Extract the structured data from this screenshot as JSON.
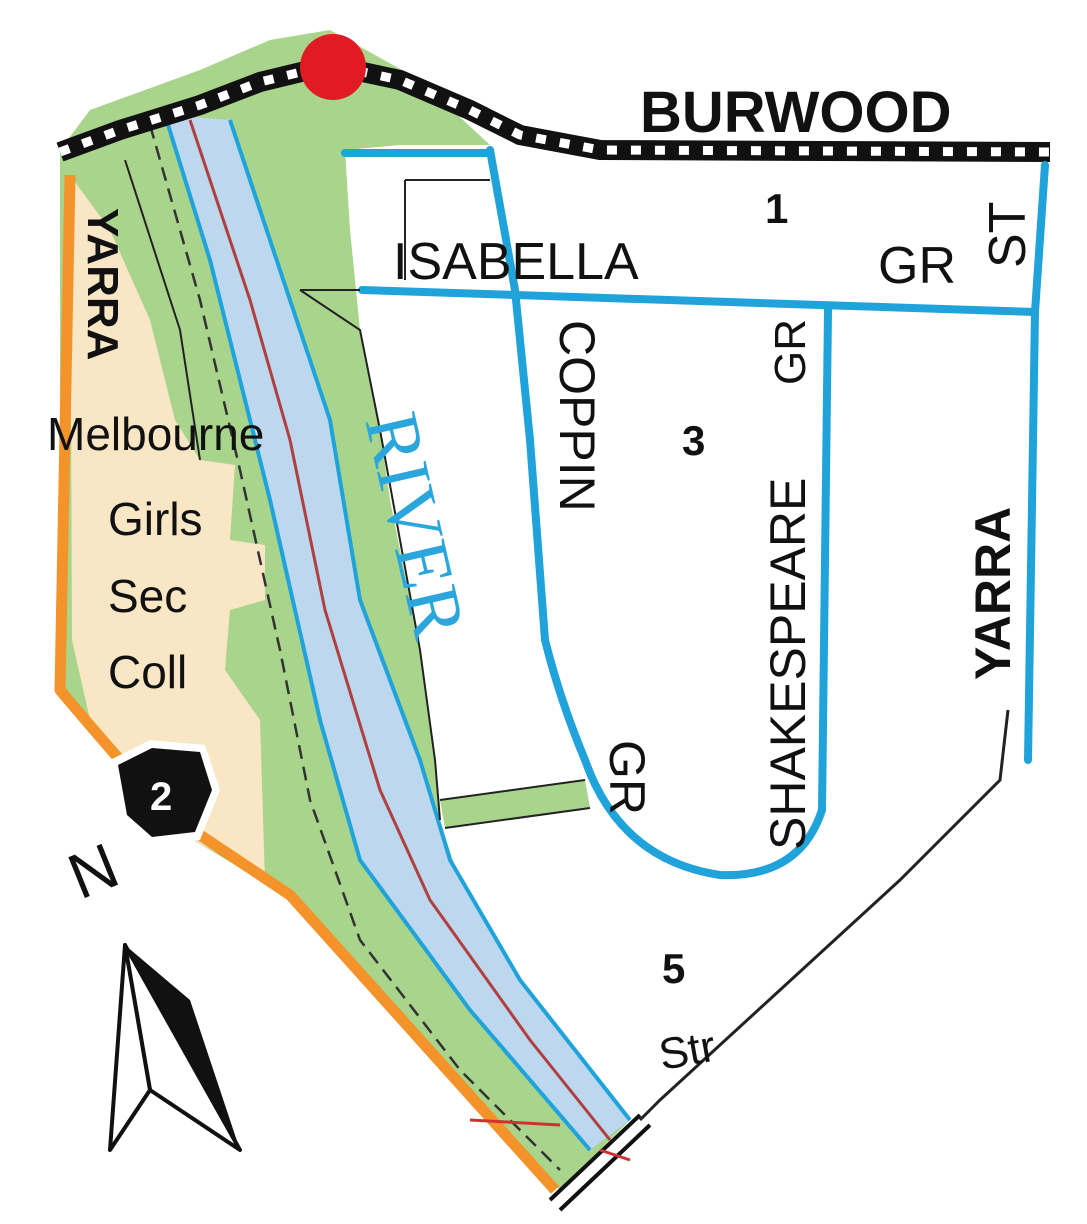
{
  "labels": {
    "burwood": "BURWOOD",
    "isabella": "ISABELLA",
    "gr_top": "GR",
    "st_top": "ST",
    "coppin": "COPPIN",
    "gr_shakespeare_top": "GR",
    "shakespeare": "SHAKESPEARE",
    "yarra_right": "YARRA",
    "gr_coppin_bottom": "GR",
    "yarra_left": "YARRA",
    "river": "RIVER",
    "school_line1": "Melbourne",
    "school_line2": "Girls",
    "school_line3": "Sec",
    "school_line4": "Coll",
    "street_partial": "Str",
    "north": "N",
    "block_1": "1",
    "block_3": "3",
    "block_5": "5",
    "route_badge": "2"
  },
  "colors": {
    "park_green": "#a9d48c",
    "river_blue": "#bcd7ee",
    "road_blue": "#1fa3da",
    "school_beige": "#f8e6c4",
    "arterial_orange": "#f4932a",
    "rail_black": "#111111",
    "marker_red": "#e21b23",
    "trail_red": "#b04040"
  },
  "icons": {
    "north_arrow": "north-arrow-icon",
    "route_shield": "route-shield-icon",
    "station_marker": "station-marker-icon"
  }
}
